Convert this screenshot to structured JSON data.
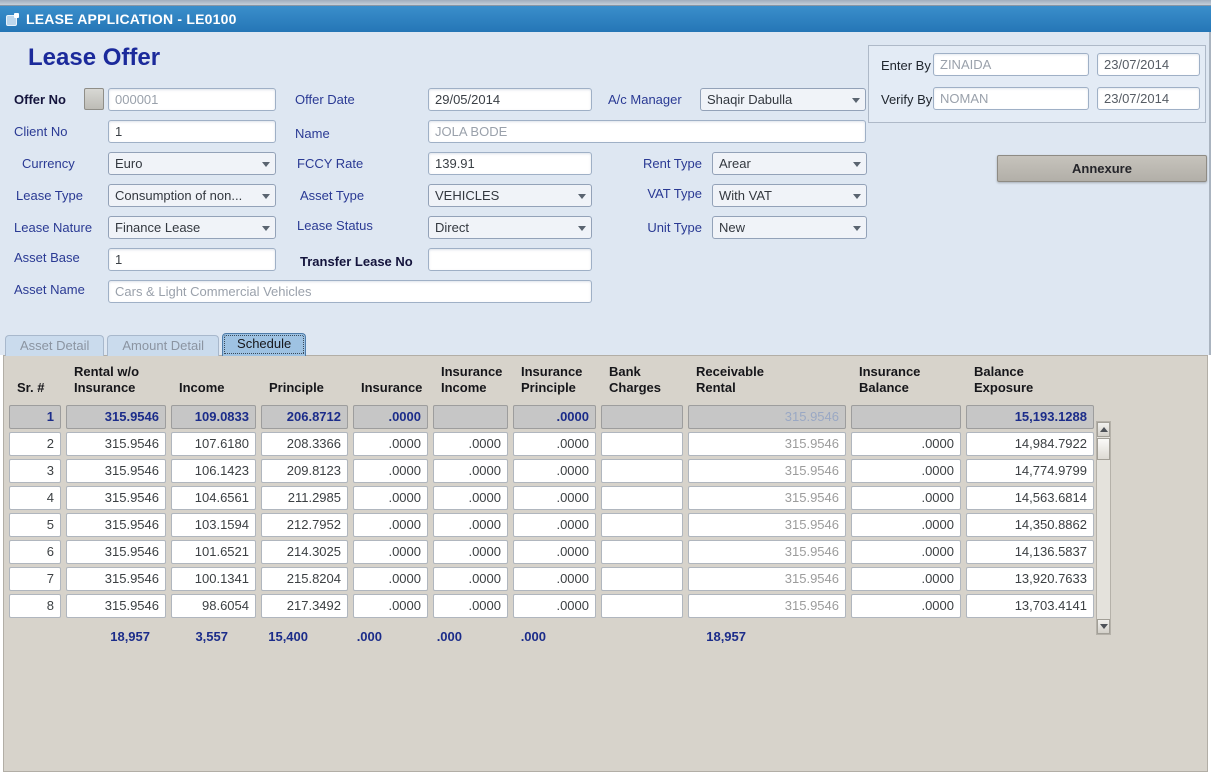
{
  "window": {
    "title": "LEASE APPLICATION - LE0100"
  },
  "page": {
    "heading": "Lease Offer"
  },
  "audit": {
    "enter_by_label": "Enter By",
    "enter_by_value": "ZINAIDA",
    "enter_by_date": "23/07/2014",
    "verify_by_label": "Verify By",
    "verify_by_value": "NOMAN",
    "verify_by_date": "23/07/2014"
  },
  "form": {
    "offer_no": {
      "label": "Offer No",
      "value": "000001"
    },
    "offer_date": {
      "label": "Offer Date",
      "value": "29/05/2014"
    },
    "ac_manager": {
      "label": "A/c Manager",
      "value": "Shaqir Dabulla"
    },
    "client_no": {
      "label": "Client No",
      "value": "1"
    },
    "name": {
      "label": "Name",
      "value": "JOLA BODE"
    },
    "currency": {
      "label": "Currency",
      "value": "Euro"
    },
    "fccy_rate": {
      "label": "FCCY Rate",
      "value": "139.91"
    },
    "rent_type": {
      "label": "Rent Type",
      "value": "Arear"
    },
    "lease_type": {
      "label": "Lease Type",
      "value": "Consumption of non..."
    },
    "asset_type": {
      "label": "Asset Type",
      "value": "VEHICLES"
    },
    "vat_type": {
      "label": "VAT Type",
      "value": "With VAT"
    },
    "lease_nature": {
      "label": "Lease Nature",
      "value": "Finance Lease"
    },
    "lease_status": {
      "label": "Lease Status",
      "value": "Direct"
    },
    "unit_type": {
      "label": "Unit Type",
      "value": "New"
    },
    "asset_base": {
      "label": "Asset Base",
      "value": "1"
    },
    "transfer_lease_no": {
      "label": "Transfer Lease No",
      "value": ""
    },
    "asset_name": {
      "label": "Asset Name",
      "value": "Cars & Light Commercial Vehicles"
    },
    "annexure_button": "Annexure"
  },
  "tabs": [
    {
      "label": "Asset Detail",
      "active": false
    },
    {
      "label": "Amount Detail",
      "active": false
    },
    {
      "label": "Schedule",
      "active": true
    }
  ],
  "schedule": {
    "columns": [
      "Sr. #",
      "Rental w/o\nInsurance",
      "Income",
      "Principle",
      "Insurance",
      "Insurance\nIncome",
      "Insurance\nPrinciple",
      "Bank\nCharges",
      "Receivable\nRental",
      "Insurance\nBalance",
      "Balance\nExposure"
    ],
    "rows": [
      [
        "1",
        "315.9546",
        "109.0833",
        "206.8712",
        ".0000",
        "",
        ".0000",
        "",
        "315.9546",
        "",
        "15,193.1288"
      ],
      [
        "2",
        "315.9546",
        "107.6180",
        "208.3366",
        ".0000",
        ".0000",
        ".0000",
        "",
        "315.9546",
        ".0000",
        "14,984.7922"
      ],
      [
        "3",
        "315.9546",
        "106.1423",
        "209.8123",
        ".0000",
        ".0000",
        ".0000",
        "",
        "315.9546",
        ".0000",
        "14,774.9799"
      ],
      [
        "4",
        "315.9546",
        "104.6561",
        "211.2985",
        ".0000",
        ".0000",
        ".0000",
        "",
        "315.9546",
        ".0000",
        "14,563.6814"
      ],
      [
        "5",
        "315.9546",
        "103.1594",
        "212.7952",
        ".0000",
        ".0000",
        ".0000",
        "",
        "315.9546",
        ".0000",
        "14,350.8862"
      ],
      [
        "6",
        "315.9546",
        "101.6521",
        "214.3025",
        ".0000",
        ".0000",
        ".0000",
        "",
        "315.9546",
        ".0000",
        "14,136.5837"
      ],
      [
        "7",
        "315.9546",
        "100.1341",
        "215.8204",
        ".0000",
        ".0000",
        ".0000",
        "",
        "315.9546",
        ".0000",
        "13,920.7633"
      ],
      [
        "8",
        "315.9546",
        "98.6054",
        "217.3492",
        ".0000",
        ".0000",
        ".0000",
        "",
        "315.9546",
        ".0000",
        "13,703.4141"
      ]
    ],
    "totals": [
      "",
      "18,957",
      "3,557",
      "15,400",
      ".000",
      ".000",
      ".000",
      "",
      "18,957",
      "",
      ""
    ]
  },
  "colors": {
    "titlebar_blue": "#2a7dbe",
    "form_background": "#dee7f2",
    "label_navy": "#2a3a94",
    "heading_navy": "#1b2a9b",
    "panel_gray": "#d7d3cb",
    "selected_row_gray": "#c6c6c6",
    "selected_text_navy": "#1b2c8a",
    "active_tab_blue": "#9ec2e2"
  }
}
